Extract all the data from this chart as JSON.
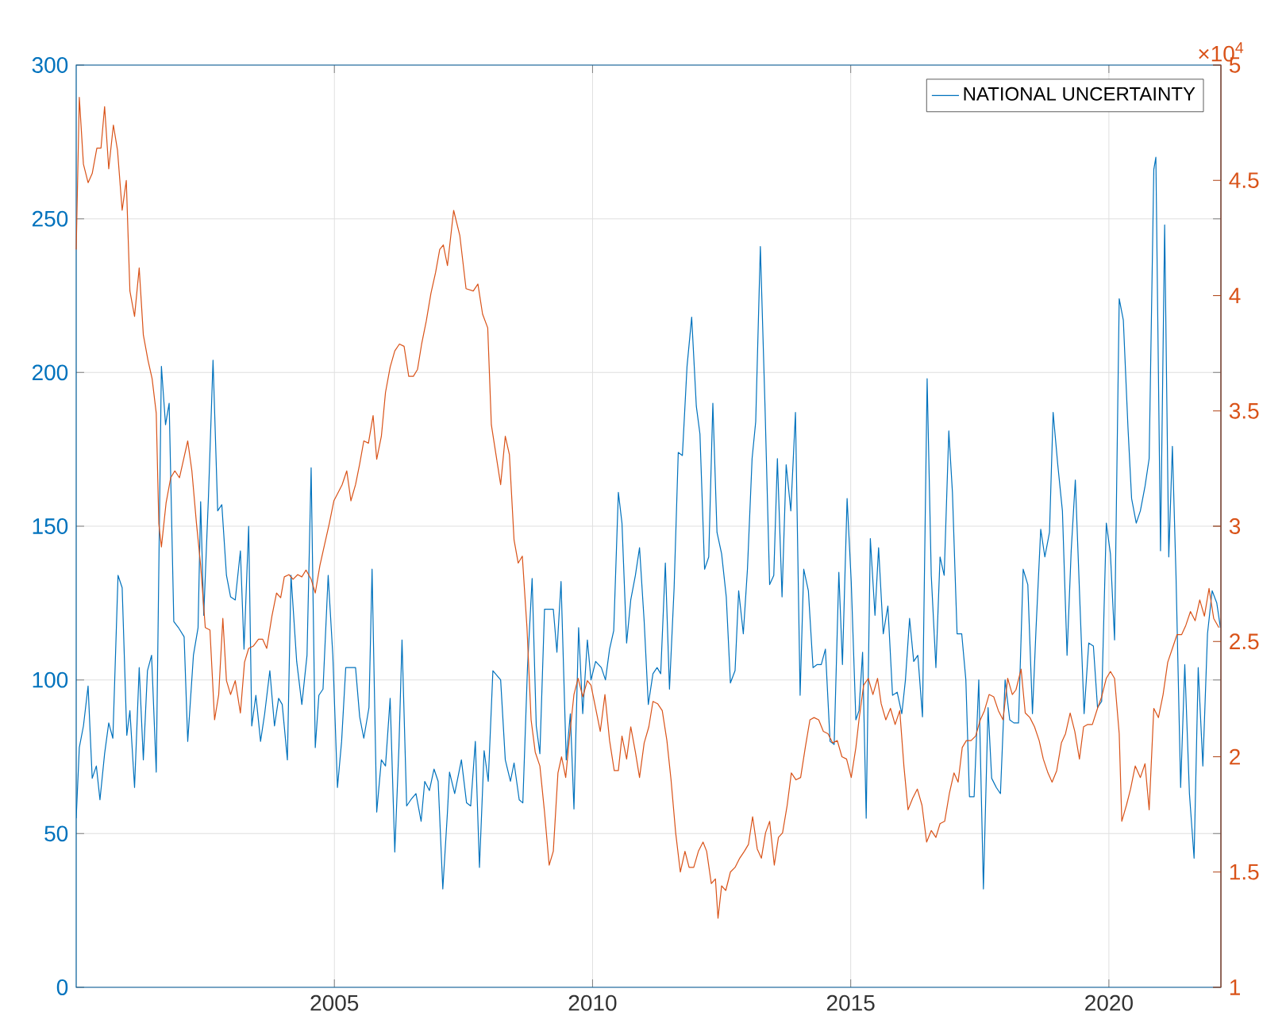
{
  "chart_data": {
    "type": "line",
    "xlim": [
      2000,
      2022.17
    ],
    "xticks": [
      2005,
      2010,
      2015,
      2020
    ],
    "ylim": [
      0,
      300
    ],
    "yticks": [
      0,
      50,
      100,
      150,
      200,
      250,
      300
    ],
    "y2lim": [
      1,
      5
    ],
    "y2ticks": [
      1,
      1.5,
      2,
      2.5,
      3,
      3.5,
      4,
      4.5,
      5
    ],
    "annotations": [
      "×10$^{4}$"
    ],
    "grid": true,
    "legend": "top right",
    "marker": "none",
    "line_style": "solid",
    "series": [
      {
        "name": "NATIONAL UNCERTAINTY",
        "color": "#0072bd",
        "x": [
          2000.0,
          2000.06,
          2000.14,
          2000.23,
          2000.31,
          2000.39,
          2000.46,
          2000.55,
          2000.63,
          2000.71,
          2000.81,
          2000.89,
          2000.98,
          2001.04,
          2001.13,
          2001.22,
          2001.3,
          2001.38,
          2001.46,
          2001.55,
          2001.65,
          2001.73,
          2001.8,
          2001.89,
          2001.98,
          2002.09,
          2002.16,
          2002.27,
          2002.36,
          2002.41,
          2002.47,
          2002.56,
          2002.65,
          2002.74,
          2002.82,
          2002.91,
          2002.99,
          2003.08,
          2003.18,
          2003.25,
          2003.34,
          2003.4,
          2003.48,
          2003.57,
          2003.65,
          2003.75,
          2003.84,
          2003.92,
          2003.99,
          2004.09,
          2004.16,
          2004.27,
          2004.37,
          2004.47,
          2004.55,
          2004.63,
          2004.7,
          2004.78,
          2004.88,
          2004.97,
          2005.06,
          2005.14,
          2005.22,
          2005.34,
          2005.41,
          2005.49,
          2005.57,
          2005.67,
          2005.73,
          2005.82,
          2005.91,
          2005.99,
          2006.08,
          2006.17,
          2006.25,
          2006.31,
          2006.4,
          2006.48,
          2006.58,
          2006.68,
          2006.75,
          2006.84,
          2006.93,
          2007.01,
          2007.1,
          2007.19,
          2007.23,
          2007.33,
          2007.46,
          2007.56,
          2007.64,
          2007.73,
          2007.81,
          2007.9,
          2007.98,
          2008.07,
          2008.22,
          2008.31,
          2008.41,
          2008.48,
          2008.58,
          2008.65,
          2008.74,
          2008.83,
          2008.91,
          2008.98,
          2009.07,
          2009.24,
          2009.31,
          2009.39,
          2009.49,
          2009.57,
          2009.64,
          2009.73,
          2009.81,
          2009.9,
          2009.97,
          2010.06,
          2010.17,
          2010.25,
          2010.33,
          2010.41,
          2010.5,
          2010.57,
          2010.66,
          2010.74,
          2010.83,
          2010.91,
          2011.0,
          2011.08,
          2011.17,
          2011.25,
          2011.32,
          2011.41,
          2011.49,
          2011.58,
          2011.66,
          2011.74,
          2011.83,
          2011.92,
          2012.01,
          2012.08,
          2012.17,
          2012.25,
          2012.33,
          2012.41,
          2012.5,
          2012.59,
          2012.67,
          2012.76,
          2012.83,
          2012.92,
          2013.0,
          2013.09,
          2013.16,
          2013.25,
          2013.34,
          2013.43,
          2013.51,
          2013.58,
          2013.67,
          2013.75,
          2013.84,
          2013.93,
          2014.02,
          2014.09,
          2014.18,
          2014.27,
          2014.35,
          2014.43,
          2014.51,
          2014.6,
          2014.68,
          2014.77,
          2014.84,
          2014.93,
          2015.01,
          2015.1,
          2015.16,
          2015.23,
          2015.3,
          2015.38,
          2015.47,
          2015.54,
          2015.63,
          2015.72,
          2015.81,
          2015.9,
          2015.99,
          2016.06,
          2016.14,
          2016.22,
          2016.3,
          2016.39,
          2016.48,
          2016.56,
          2016.65,
          2016.73,
          2016.81,
          2016.9,
          2016.97,
          2017.06,
          2017.15,
          2017.23,
          2017.3,
          2017.39,
          2017.48,
          2017.57,
          2017.66,
          2017.73,
          2017.82,
          2017.9,
          2017.99,
          2018.08,
          2018.16,
          2018.25,
          2018.34,
          2018.43,
          2018.52,
          2018.59,
          2018.68,
          2018.76,
          2018.85,
          2018.92,
          2019.01,
          2019.1,
          2019.19,
          2019.27,
          2019.35,
          2019.43,
          2019.52,
          2019.61,
          2019.7,
          2019.78,
          2019.86,
          2019.95,
          2020.03,
          2020.11,
          2020.2,
          2020.28,
          2020.37,
          2020.44,
          2020.53,
          2020.61,
          2020.7,
          2020.78,
          2020.87,
          2020.91,
          2021.0,
          2021.08,
          2021.16,
          2021.23,
          2021.3,
          2021.39,
          2021.47,
          2021.56,
          2021.65,
          2021.73,
          2021.82,
          2021.91,
          2022.0,
          2022.09,
          2022.16
        ],
        "values": [
          55,
          78,
          85,
          98,
          68,
          72,
          61,
          76,
          86,
          81,
          134,
          130,
          82,
          90,
          65,
          104,
          74,
          103,
          108,
          70,
          202,
          183,
          190,
          119,
          117,
          114,
          80,
          108,
          117,
          158,
          121,
          159,
          204,
          155,
          157,
          134,
          127,
          126,
          142,
          110,
          150,
          85,
          95,
          80,
          89,
          103,
          85,
          94,
          92,
          74,
          134,
          106,
          92,
          108,
          169,
          78,
          95,
          97,
          134,
          108,
          65,
          80,
          104,
          104,
          104,
          88,
          81,
          91,
          136,
          57,
          74,
          72,
          94,
          44,
          78,
          113,
          59,
          61,
          63,
          54,
          67,
          64,
          71,
          67,
          32,
          57,
          70,
          63,
          74,
          60,
          59,
          80,
          39,
          77,
          67,
          103,
          100,
          74,
          67,
          73,
          61,
          60,
          104,
          133,
          85,
          76,
          123,
          123,
          109,
          132,
          74,
          89,
          58,
          117,
          89,
          113,
          100,
          106,
          104,
          100,
          110,
          116,
          161,
          151,
          112,
          126,
          134,
          143,
          119,
          92,
          102,
          104,
          102,
          138,
          97,
          130,
          174,
          173,
          202,
          218,
          189,
          180,
          136,
          140,
          190,
          148,
          141,
          127,
          99,
          103,
          129,
          115,
          136,
          172,
          184,
          241,
          189,
          131,
          134,
          172,
          127,
          170,
          155,
          187,
          95,
          136,
          129,
          104,
          105,
          105,
          110,
          80,
          79,
          135,
          105,
          159,
          132,
          87,
          90,
          109,
          55,
          146,
          121,
          143,
          115,
          124,
          95,
          96,
          89,
          100,
          120,
          106,
          108,
          88,
          198,
          134,
          104,
          140,
          134,
          181,
          161,
          115,
          115,
          100,
          62,
          62,
          100,
          32,
          91,
          68,
          65,
          63,
          100,
          87,
          86,
          86,
          136,
          131,
          89,
          117,
          149,
          140,
          148,
          187,
          170,
          155,
          108,
          142,
          165,
          129,
          89,
          112,
          111,
          91,
          93,
          151,
          141,
          113,
          224,
          217,
          182,
          159,
          151,
          155,
          163,
          172,
          266,
          270,
          142,
          248,
          140,
          176,
          134,
          65,
          105,
          63,
          42,
          104,
          72,
          115,
          129,
          125,
          117
        ]
      },
      {
        "color": "#d95319",
        "axis": "y2",
        "x": [
          2000.0,
          2000.06,
          2000.14,
          2000.23,
          2000.31,
          2000.4,
          2000.48,
          2000.55,
          2000.63,
          2000.72,
          2000.8,
          2000.89,
          2000.97,
          2001.04,
          2001.13,
          2001.22,
          2001.3,
          2001.39,
          2001.47,
          2001.55,
          2001.6,
          2001.65,
          2001.74,
          2001.83,
          2001.91,
          2002.0,
          2002.07,
          2002.16,
          2002.24,
          2002.33,
          2002.41,
          2002.5,
          2002.59,
          2002.68,
          2002.76,
          2002.84,
          2002.91,
          2002.99,
          2003.08,
          2003.18,
          2003.26,
          2003.34,
          2003.43,
          2003.53,
          2003.61,
          2003.69,
          2003.79,
          2003.88,
          2003.96,
          2004.03,
          2004.12,
          2004.2,
          2004.29,
          2004.37,
          2004.45,
          2004.55,
          2004.63,
          2004.72,
          2004.81,
          2004.9,
          2004.99,
          2005.06,
          2005.15,
          2005.24,
          2005.32,
          2005.41,
          2005.49,
          2005.57,
          2005.66,
          2005.75,
          2005.82,
          2005.91,
          2005.99,
          2006.08,
          2006.17,
          2006.26,
          2006.35,
          2006.44,
          2006.53,
          2006.61,
          2006.69,
          2006.78,
          2006.87,
          2006.96,
          2007.04,
          2007.11,
          2007.19,
          2007.31,
          2007.43,
          2007.55,
          2007.69,
          2007.78,
          2007.87,
          2007.97,
          2008.04,
          2008.13,
          2008.22,
          2008.31,
          2008.39,
          2008.48,
          2008.56,
          2008.64,
          2008.73,
          2008.81,
          2008.89,
          2008.98,
          2009.07,
          2009.16,
          2009.24,
          2009.33,
          2009.4,
          2009.48,
          2009.56,
          2009.64,
          2009.72,
          2009.81,
          2009.9,
          2009.97,
          2010.06,
          2010.15,
          2010.24,
          2010.33,
          2010.42,
          2010.5,
          2010.57,
          2010.66,
          2010.74,
          2010.83,
          2010.91,
          2011.0,
          2011.09,
          2011.17,
          2011.26,
          2011.35,
          2011.44,
          2011.52,
          2011.61,
          2011.7,
          2011.79,
          2011.87,
          2011.96,
          2012.05,
          2012.14,
          2012.21,
          2012.3,
          2012.38,
          2012.43,
          2012.5,
          2012.58,
          2012.67,
          2012.76,
          2012.85,
          2012.94,
          2013.02,
          2013.1,
          2013.19,
          2013.27,
          2013.35,
          2013.43,
          2013.52,
          2013.6,
          2013.68,
          2013.77,
          2013.85,
          2013.94,
          2014.03,
          2014.12,
          2014.21,
          2014.29,
          2014.38,
          2014.47,
          2014.56,
          2014.65,
          2014.74,
          2014.83,
          2014.92,
          2015.01,
          2015.1,
          2015.16,
          2015.25,
          2015.34,
          2015.43,
          2015.52,
          2015.59,
          2015.68,
          2015.77,
          2015.86,
          2015.95,
          2016.03,
          2016.11,
          2016.2,
          2016.29,
          2016.38,
          2016.47,
          2016.56,
          2016.65,
          2016.73,
          2016.82,
          2016.91,
          2017.0,
          2017.08,
          2017.16,
          2017.24,
          2017.33,
          2017.42,
          2017.51,
          2017.59,
          2017.68,
          2017.77,
          2017.86,
          2017.95,
          2018.04,
          2018.13,
          2018.2,
          2018.3,
          2018.38,
          2018.47,
          2018.56,
          2018.65,
          2018.73,
          2018.82,
          2018.9,
          2018.99,
          2019.08,
          2019.16,
          2019.25,
          2019.34,
          2019.43,
          2019.51,
          2019.59,
          2019.68,
          2019.78,
          2019.86,
          2019.95,
          2020.03,
          2020.11,
          2020.2,
          2020.25,
          2020.34,
          2020.42,
          2020.51,
          2020.61,
          2020.7,
          2020.78,
          2020.87,
          2020.96,
          2021.05,
          2021.14,
          2021.23,
          2021.32,
          2021.41,
          2021.49,
          2021.58,
          2021.67,
          2021.76,
          2021.85,
          2021.94,
          2022.03,
          2022.13
        ],
        "values": [
          4.2,
          4.86,
          4.57,
          4.49,
          4.53,
          4.64,
          4.64,
          4.82,
          4.55,
          4.74,
          4.63,
          4.37,
          4.5,
          4.02,
          3.91,
          4.12,
          3.83,
          3.72,
          3.64,
          3.49,
          3.01,
          2.91,
          3.1,
          3.21,
          3.24,
          3.21,
          3.28,
          3.37,
          3.24,
          3.01,
          2.83,
          2.56,
          2.55,
          2.16,
          2.27,
          2.6,
          2.33,
          2.27,
          2.33,
          2.19,
          2.41,
          2.47,
          2.48,
          2.51,
          2.51,
          2.47,
          2.61,
          2.71,
          2.69,
          2.78,
          2.79,
          2.77,
          2.79,
          2.78,
          2.81,
          2.77,
          2.71,
          2.83,
          2.92,
          3.01,
          3.11,
          3.14,
          3.18,
          3.24,
          3.11,
          3.18,
          3.27,
          3.37,
          3.36,
          3.48,
          3.29,
          3.39,
          3.58,
          3.69,
          3.76,
          3.79,
          3.78,
          3.65,
          3.65,
          3.68,
          3.79,
          3.89,
          4.01,
          4.1,
          4.2,
          4.22,
          4.13,
          4.37,
          4.26,
          4.03,
          4.02,
          4.05,
          3.92,
          3.86,
          3.44,
          3.31,
          3.18,
          3.39,
          3.31,
          2.94,
          2.84,
          2.87,
          2.56,
          2.16,
          2.02,
          1.96,
          1.76,
          1.53,
          1.59,
          1.93,
          2.0,
          1.91,
          2.1,
          2.27,
          2.34,
          2.26,
          2.33,
          2.31,
          2.21,
          2.11,
          2.27,
          2.07,
          1.94,
          1.94,
          2.09,
          1.99,
          2.13,
          2.02,
          1.91,
          2.06,
          2.13,
          2.24,
          2.23,
          2.2,
          2.07,
          1.9,
          1.67,
          1.5,
          1.59,
          1.52,
          1.52,
          1.59,
          1.63,
          1.59,
          1.45,
          1.47,
          1.3,
          1.44,
          1.42,
          1.5,
          1.52,
          1.56,
          1.59,
          1.62,
          1.74,
          1.6,
          1.56,
          1.67,
          1.72,
          1.53,
          1.65,
          1.67,
          1.79,
          1.93,
          1.9,
          1.91,
          2.04,
          2.16,
          2.17,
          2.16,
          2.11,
          2.1,
          2.06,
          2.07,
          2.0,
          1.99,
          1.91,
          2.04,
          2.16,
          2.31,
          2.34,
          2.27,
          2.34,
          2.23,
          2.16,
          2.21,
          2.14,
          2.2,
          1.96,
          1.77,
          1.82,
          1.86,
          1.79,
          1.63,
          1.68,
          1.65,
          1.71,
          1.72,
          1.84,
          1.93,
          1.89,
          2.04,
          2.07,
          2.07,
          2.09,
          2.16,
          2.2,
          2.27,
          2.26,
          2.2,
          2.16,
          2.34,
          2.27,
          2.29,
          2.38,
          2.19,
          2.17,
          2.13,
          2.07,
          1.99,
          1.93,
          1.89,
          1.94,
          2.06,
          2.1,
          2.19,
          2.11,
          1.99,
          2.13,
          2.14,
          2.14,
          2.21,
          2.26,
          2.34,
          2.37,
          2.34,
          2.1,
          1.72,
          1.79,
          1.86,
          1.96,
          1.91,
          1.97,
          1.77,
          2.21,
          2.17,
          2.27,
          2.41,
          2.47,
          2.53,
          2.53,
          2.57,
          2.63,
          2.59,
          2.68,
          2.61,
          2.73,
          2.6,
          2.56
        ]
      }
    ]
  }
}
